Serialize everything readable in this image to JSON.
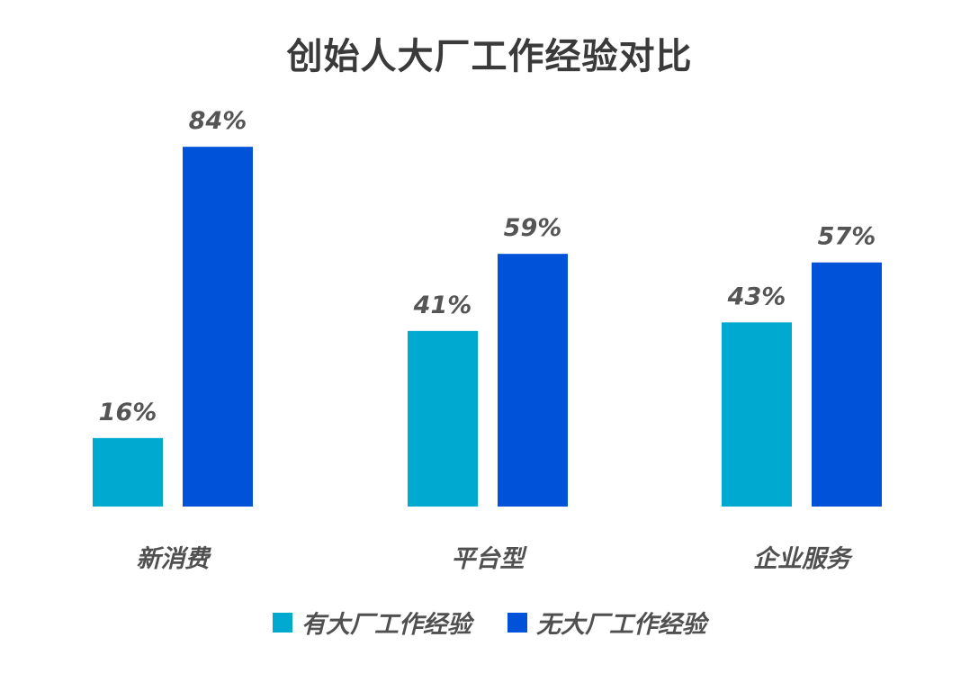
{
  "chart_data": {
    "type": "bar",
    "title": "创始人大厂工作经验对比",
    "categories": [
      "新消费",
      "平台型",
      "企业服务"
    ],
    "series": [
      {
        "name": "有大厂工作经验",
        "values": [
          16,
          41,
          43
        ],
        "labels": [
          "16%",
          "41%",
          "43%"
        ],
        "color": "#00a9d0"
      },
      {
        "name": "无大厂工作经验",
        "values": [
          84,
          59,
          57
        ],
        "labels": [
          "84%",
          "59%",
          "57%"
        ],
        "color": "#0052d9"
      }
    ],
    "ylim": [
      0,
      100
    ],
    "grid": false,
    "legend_position": "bottom"
  }
}
